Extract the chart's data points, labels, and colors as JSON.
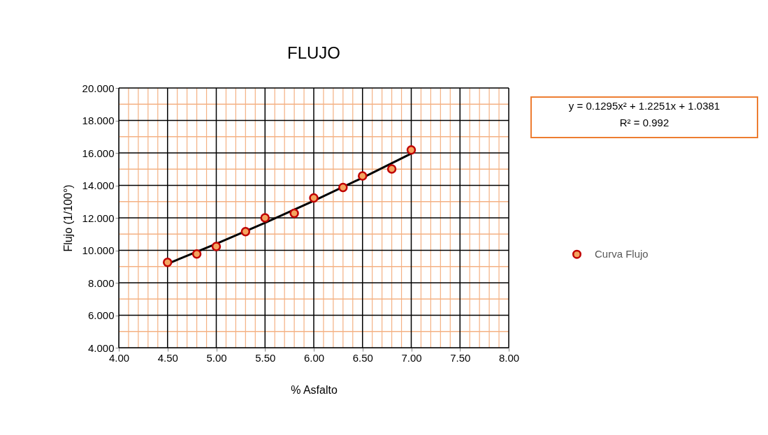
{
  "chart_data": {
    "type": "scatter",
    "title": "FLUJO",
    "xlabel": "% Asfalto",
    "ylabel": "Flujo (1/100°)",
    "xlim": [
      4,
      8
    ],
    "ylim": [
      4,
      20
    ],
    "xticks": [
      {
        "value": 4,
        "label": "4.00"
      },
      {
        "value": 4.1,
        "label": null
      },
      {
        "value": 4.2,
        "label": null
      },
      {
        "value": 4.3,
        "label": null
      },
      {
        "value": 4.4,
        "label": null
      },
      {
        "value": 4.5,
        "label": "4.50"
      },
      {
        "value": 4.6,
        "label": null
      },
      {
        "value": 4.7,
        "label": null
      },
      {
        "value": 4.8,
        "label": null
      },
      {
        "value": 4.9,
        "label": null
      },
      {
        "value": 5,
        "label": "5.00"
      },
      {
        "value": 5.1,
        "label": null
      },
      {
        "value": 5.2,
        "label": null
      },
      {
        "value": 5.3,
        "label": null
      },
      {
        "value": 5.4,
        "label": null
      },
      {
        "value": 5.5,
        "label": "5.50"
      },
      {
        "value": 5.6,
        "label": null
      },
      {
        "value": 5.7,
        "label": null
      },
      {
        "value": 5.8,
        "label": null
      },
      {
        "value": 5.9,
        "label": null
      },
      {
        "value": 6,
        "label": "6.00"
      },
      {
        "value": 6.1,
        "label": null
      },
      {
        "value": 6.2,
        "label": null
      },
      {
        "value": 6.3,
        "label": null
      },
      {
        "value": 6.4,
        "label": null
      },
      {
        "value": 6.5,
        "label": "6.50"
      },
      {
        "value": 6.6,
        "label": null
      },
      {
        "value": 6.7,
        "label": null
      },
      {
        "value": 6.8,
        "label": null
      },
      {
        "value": 6.9,
        "label": null
      },
      {
        "value": 7,
        "label": "7.00"
      },
      {
        "value": 7.1,
        "label": null
      },
      {
        "value": 7.2,
        "label": null
      },
      {
        "value": 7.3,
        "label": null
      },
      {
        "value": 7.4,
        "label": null
      },
      {
        "value": 7.5,
        "label": "7.50"
      },
      {
        "value": 7.6,
        "label": null
      },
      {
        "value": 7.7,
        "label": null
      },
      {
        "value": 7.8,
        "label": null
      },
      {
        "value": 7.9,
        "label": null
      },
      {
        "value": 8,
        "label": "8.00"
      }
    ],
    "yticks": [
      {
        "value": 4,
        "label": "4.000"
      },
      {
        "value": 5,
        "label": null
      },
      {
        "value": 6,
        "label": "6.000"
      },
      {
        "value": 7,
        "label": null
      },
      {
        "value": 8,
        "label": "8.000"
      },
      {
        "value": 9,
        "label": null
      },
      {
        "value": 10,
        "label": "10.000"
      },
      {
        "value": 11,
        "label": null
      },
      {
        "value": 12,
        "label": "12.000"
      },
      {
        "value": 13,
        "label": null
      },
      {
        "value": 14,
        "label": "14.000"
      },
      {
        "value": 15,
        "label": null
      },
      {
        "value": 16,
        "label": "16.000"
      },
      {
        "value": 17,
        "label": null
      },
      {
        "value": 18,
        "label": "18.000"
      },
      {
        "value": 19,
        "label": null
      },
      {
        "value": 20,
        "label": "20.000"
      }
    ],
    "series": [
      {
        "name": "Curva Flujo",
        "type": "scatter",
        "marker": "circle",
        "color": "#f4a460",
        "x": [
          4.5,
          4.8,
          5.0,
          5.3,
          5.5,
          5.8,
          6.0,
          6.3,
          6.5,
          6.8,
          7.0
        ],
        "values": [
          9.26,
          9.77,
          10.24,
          11.15,
          12.0,
          12.28,
          13.23,
          13.87,
          14.58,
          15.01,
          16.18
        ]
      },
      {
        "type": "line",
        "color": "#000000",
        "x": [
          4.5,
          5.0,
          5.5,
          6.0,
          6.5,
          7.0
        ],
        "values": [
          9.17,
          10.4,
          11.69,
          13.05,
          14.47,
          15.96
        ]
      }
    ],
    "annotations": [
      "y = 0.1295x² + 1.2251x + 1.0381\nR² = 0.992"
    ],
    "grid": true,
    "legend": "right"
  }
}
